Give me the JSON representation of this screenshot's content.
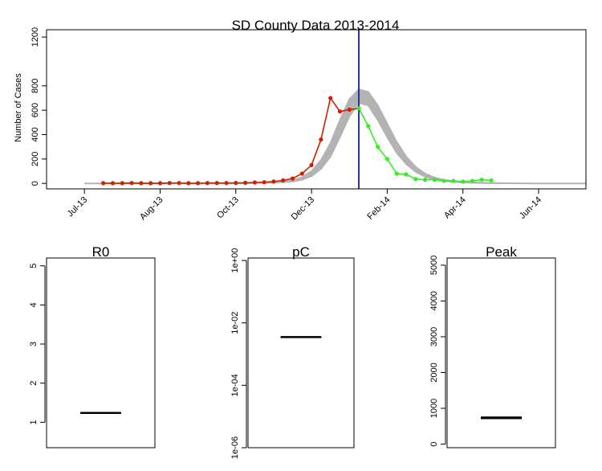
{
  "chart_data": [
    {
      "type": "line",
      "title": "SD County Data 2013-2014",
      "ylabel": "Number of Cases",
      "ylim": [
        0,
        1200
      ],
      "y_ticks": [
        0,
        200,
        400,
        600,
        800,
        1200
      ],
      "x_tick_labels": [
        "Jul-13",
        "Aug-13",
        "Oct-13",
        "Dec-13",
        "Feb-14",
        "Apr-14",
        "Jun-14"
      ],
      "x_tick_weeks": [
        0,
        8,
        16,
        24,
        32,
        40,
        48
      ],
      "vline_week": 29,
      "colors": {
        "observed": "#cc2200",
        "forecast": "#33ee22",
        "band": "#b3b3b3",
        "vline": "#2e2e9e"
      },
      "series": [
        {
          "key": "observed",
          "x": [
            2,
            3,
            4,
            5,
            6,
            7,
            8,
            9,
            10,
            11,
            12,
            13,
            14,
            15,
            16,
            17,
            18,
            19,
            20,
            21,
            22,
            23,
            24,
            25,
            26,
            27,
            28,
            29
          ],
          "y": [
            2,
            2,
            2,
            3,
            2,
            2,
            2,
            3,
            3,
            2,
            2,
            3,
            3,
            3,
            4,
            5,
            8,
            10,
            15,
            25,
            40,
            80,
            150,
            360,
            700,
            590,
            605,
            615
          ]
        },
        {
          "key": "forecast",
          "x": [
            29,
            30,
            31,
            32,
            33,
            34,
            35,
            36,
            37,
            38,
            39,
            40,
            41,
            42,
            43
          ],
          "y": [
            615,
            470,
            300,
            200,
            80,
            75,
            35,
            30,
            30,
            20,
            20,
            15,
            20,
            30,
            25
          ]
        }
      ],
      "band": {
        "x": [
          0,
          4,
          8,
          12,
          16,
          18,
          20,
          22,
          23,
          24,
          25,
          26,
          27,
          28,
          29,
          30,
          31,
          32,
          33,
          34,
          35,
          36,
          37,
          38,
          40,
          42,
          44,
          48,
          53
        ],
        "lower": [
          0,
          0,
          0,
          0,
          0,
          2,
          5,
          15,
          30,
          60,
          120,
          220,
          380,
          550,
          660,
          640,
          520,
          380,
          250,
          160,
          95,
          55,
          32,
          18,
          7,
          3,
          1,
          0,
          0
        ],
        "upper": [
          0,
          0,
          0,
          0,
          1,
          3,
          8,
          25,
          50,
          100,
          190,
          330,
          520,
          690,
          770,
          750,
          640,
          490,
          340,
          220,
          135,
          80,
          48,
          28,
          12,
          5,
          2,
          0,
          0
        ]
      }
    },
    {
      "type": "boxplot",
      "title": "R0",
      "ylim": [
        0.35,
        5.2
      ],
      "y_ticks": [
        1,
        2,
        3,
        4,
        5
      ],
      "y_tick_labels": [
        "1",
        "2",
        "3",
        "4",
        "5"
      ],
      "median": 1.24,
      "q1": 1.23,
      "q3": 1.25
    },
    {
      "type": "boxplot",
      "title": "pC",
      "log_scale": true,
      "ylim": [
        1e-06,
        1.2
      ],
      "y_ticks": [
        1e-06,
        0.0001,
        0.01,
        1
      ],
      "y_tick_labels": [
        "1e-06",
        "1e-04",
        "1e-02",
        "1e+00"
      ],
      "median": 0.0035,
      "q1": 0.0034,
      "q3": 0.0036
    },
    {
      "type": "boxplot",
      "title": "Peak",
      "ylim": [
        -100,
        5200
      ],
      "y_ticks": [
        0,
        1000,
        2000,
        3000,
        4000,
        5000
      ],
      "y_tick_labels": [
        "0",
        "1000",
        "2000",
        "3000",
        "4000",
        "5000"
      ],
      "median": 730,
      "q1": 710,
      "q3": 760
    }
  ]
}
